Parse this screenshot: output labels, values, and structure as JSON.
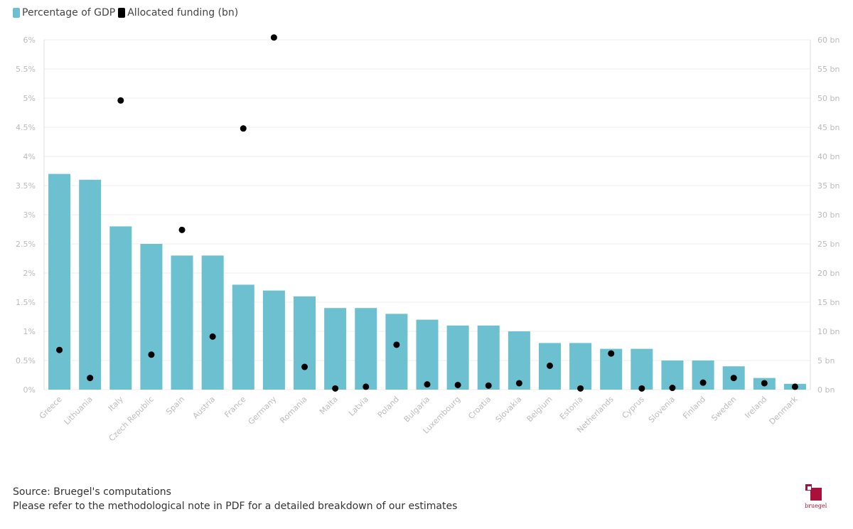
{
  "legend": {
    "gdp_label": "Percentage of GDP",
    "funding_label": "Allocated funding (bn)"
  },
  "colors": {
    "bar": "#6dc0cf",
    "dot": "#000000",
    "grid": "#eeeeee",
    "logo": "#a8123a"
  },
  "chart_data": {
    "type": "bar",
    "categories": [
      "Greece",
      "Lithuania",
      "Italy",
      "Czech Republic",
      "Spain",
      "Austria",
      "France",
      "Germany",
      "Romania",
      "Malta",
      "Latvia",
      "Poland",
      "Bulgaria",
      "Luxembourg",
      "Croatia",
      "Slovakia",
      "Belgium",
      "Estonia",
      "Netherlands",
      "Cyprus",
      "Slovenia",
      "Finland",
      "Sweden",
      "Ireland",
      "Denmark"
    ],
    "series": [
      {
        "name": "Percentage of GDP",
        "type": "bar",
        "axis": "left",
        "values": [
          3.7,
          3.6,
          2.8,
          2.5,
          2.3,
          2.3,
          1.8,
          1.7,
          1.6,
          1.4,
          1.4,
          1.3,
          1.2,
          1.1,
          1.1,
          1.0,
          0.8,
          0.8,
          0.7,
          0.7,
          0.5,
          0.5,
          0.4,
          0.2,
          0.1
        ]
      },
      {
        "name": "Allocated funding (bn)",
        "type": "scatter",
        "axis": "right",
        "values": [
          6.8,
          2.0,
          49.6,
          6.0,
          27.4,
          9.1,
          44.8,
          60.4,
          3.9,
          0.2,
          0.5,
          7.7,
          0.9,
          0.8,
          0.7,
          1.1,
          4.1,
          0.2,
          6.2,
          0.2,
          0.3,
          1.2,
          2.0,
          1.1,
          0.5
        ]
      }
    ],
    "y_left": {
      "ylim": [
        0,
        6
      ],
      "ticks": [
        "0%",
        "0.5%",
        "1%",
        "1.5%",
        "2%",
        "2.5%",
        "3%",
        "3.5%",
        "4%",
        "4.5%",
        "5%",
        "5.5%",
        "6%"
      ]
    },
    "y_right": {
      "ylim": [
        0,
        60
      ],
      "ticks": [
        "0 bn",
        "5 bn",
        "10 bn",
        "15 bn",
        "20 bn",
        "25 bn",
        "30 bn",
        "35 bn",
        "40 bn",
        "45 bn",
        "50 bn",
        "55 bn",
        "60 bn"
      ]
    },
    "grid": true,
    "legend_position": "top-left"
  },
  "source": {
    "line1": "Source: Bruegel's computations",
    "line2": "Please refer to the methodological note in PDF for a detailed breakdown of our estimates"
  },
  "logo": {
    "text": "bruegel"
  }
}
